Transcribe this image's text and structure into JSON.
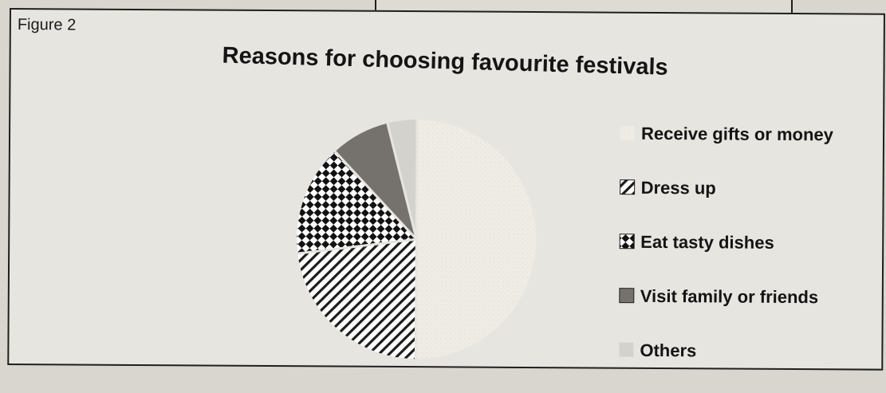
{
  "figure_label": "Figure 2",
  "chart_data": {
    "type": "pie",
    "title": "Reasons for choosing favourite festivals",
    "categories": [
      "Receive gifts or money",
      "Dress up",
      "Eat tasty dishes",
      "Visit family or friends",
      "Others"
    ],
    "values": [
      50,
      23,
      15,
      8,
      4
    ],
    "unit": "%",
    "legend_position": "right",
    "colors": [
      "#efece6",
      "#ffffff",
      "#ffffff",
      "#6f6d69",
      "#d0cec9"
    ],
    "patterns": [
      "light-speckle",
      "diagonal-lines",
      "checker",
      "solid-dark",
      "solid-light"
    ]
  }
}
